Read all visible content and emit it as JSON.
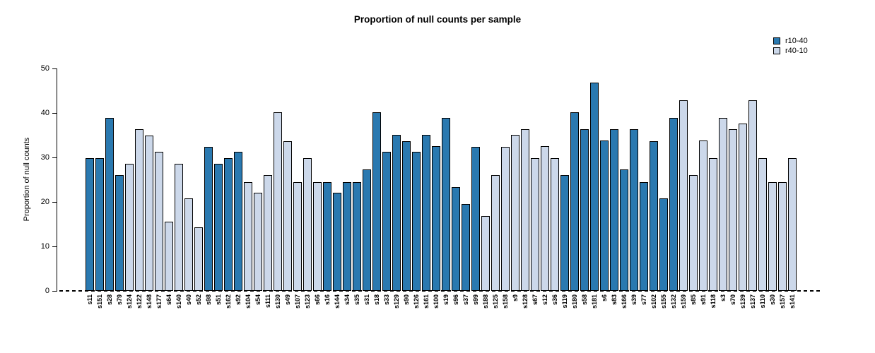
{
  "figure": {
    "title": "Proportion of null counts per sample",
    "ylabel": "Proportion of null counts"
  },
  "legend": {
    "items": [
      {
        "label": "r10-40",
        "color": "#2a79b0"
      },
      {
        "label": "r40-10",
        "color": "#ccd8ea"
      }
    ]
  },
  "chart_data": {
    "type": "bar",
    "title": "Proportion of null counts per sample",
    "xlabel": "",
    "ylabel": "Proportion of null counts",
    "ylim": [
      0,
      50
    ],
    "yticks": [
      0,
      10,
      20,
      30,
      40,
      50
    ],
    "grid": false,
    "legend_position": "top-right",
    "bar_border_color": "#000000",
    "baseline_style": "dashed",
    "series_colors": {
      "r10-40": "#2a79b0",
      "r40-10": "#ccd8ea"
    },
    "categories": [
      "s11",
      "s151",
      "s28",
      "s79",
      "s124",
      "s122",
      "s148",
      "s177",
      "s64",
      "s140",
      "s40",
      "s52",
      "s98",
      "s51",
      "s162",
      "s92",
      "s104",
      "s54",
      "s111",
      "s130",
      "s49",
      "s107",
      "s123",
      "s66",
      "s16",
      "s144",
      "s34",
      "s35",
      "s31",
      "s18",
      "s33",
      "s129",
      "s90",
      "s126",
      "s161",
      "s100",
      "s19",
      "s96",
      "s37",
      "s99",
      "s188",
      "s125",
      "s158",
      "s9",
      "s128",
      "s67",
      "s12",
      "s36",
      "s119",
      "s180",
      "s58",
      "s181",
      "s6",
      "s83",
      "s166",
      "s39",
      "s77",
      "s102",
      "s155",
      "s132",
      "s159",
      "s85",
      "s91",
      "s118",
      "s3",
      "s70",
      "s139",
      "s137",
      "s110",
      "s30",
      "s157",
      "s141"
    ],
    "groups": [
      "r10-40",
      "r10-40",
      "r10-40",
      "r10-40",
      "r40-10",
      "r40-10",
      "r40-10",
      "r40-10",
      "r40-10",
      "r40-10",
      "r40-10",
      "r40-10",
      "r10-40",
      "r10-40",
      "r10-40",
      "r10-40",
      "r40-10",
      "r40-10",
      "r40-10",
      "r40-10",
      "r40-10",
      "r40-10",
      "r40-10",
      "r40-10",
      "r10-40",
      "r10-40",
      "r10-40",
      "r10-40",
      "r10-40",
      "r10-40",
      "r10-40",
      "r10-40",
      "r10-40",
      "r10-40",
      "r10-40",
      "r10-40",
      "r10-40",
      "r10-40",
      "r10-40",
      "r10-40",
      "r40-10",
      "r40-10",
      "r40-10",
      "r40-10",
      "r40-10",
      "r40-10",
      "r40-10",
      "r40-10",
      "r10-40",
      "r10-40",
      "r10-40",
      "r10-40",
      "r10-40",
      "r10-40",
      "r10-40",
      "r10-40",
      "r10-40",
      "r10-40",
      "r10-40",
      "r10-40",
      "r40-10",
      "r40-10",
      "r40-10",
      "r40-10",
      "r40-10",
      "r40-10",
      "r40-10",
      "r40-10",
      "r40-10",
      "r40-10",
      "r40-10",
      "r40-10"
    ],
    "values": [
      29.8,
      29.8,
      38.9,
      26.0,
      28.6,
      36.4,
      34.9,
      31.2,
      15.6,
      28.5,
      20.8,
      14.3,
      32.4,
      28.5,
      29.9,
      31.2,
      24.5,
      22.1,
      26.0,
      40.1,
      33.7,
      24.5,
      29.8,
      24.5,
      24.5,
      22.0,
      24.5,
      24.5,
      27.3,
      40.1,
      31.2,
      35.0,
      33.7,
      31.2,
      35.0,
      32.5,
      38.9,
      23.4,
      19.5,
      32.4,
      16.9,
      26.0,
      32.4,
      35.0,
      36.4,
      29.9,
      32.5,
      29.8,
      26.0,
      40.1,
      36.4,
      46.8,
      33.8,
      36.4,
      27.3,
      36.4,
      24.5,
      33.7,
      20.8,
      38.9,
      42.8,
      26.0,
      33.8,
      29.9,
      38.9,
      36.4,
      37.6,
      42.8,
      29.8,
      24.5,
      24.5,
      29.8
    ]
  }
}
